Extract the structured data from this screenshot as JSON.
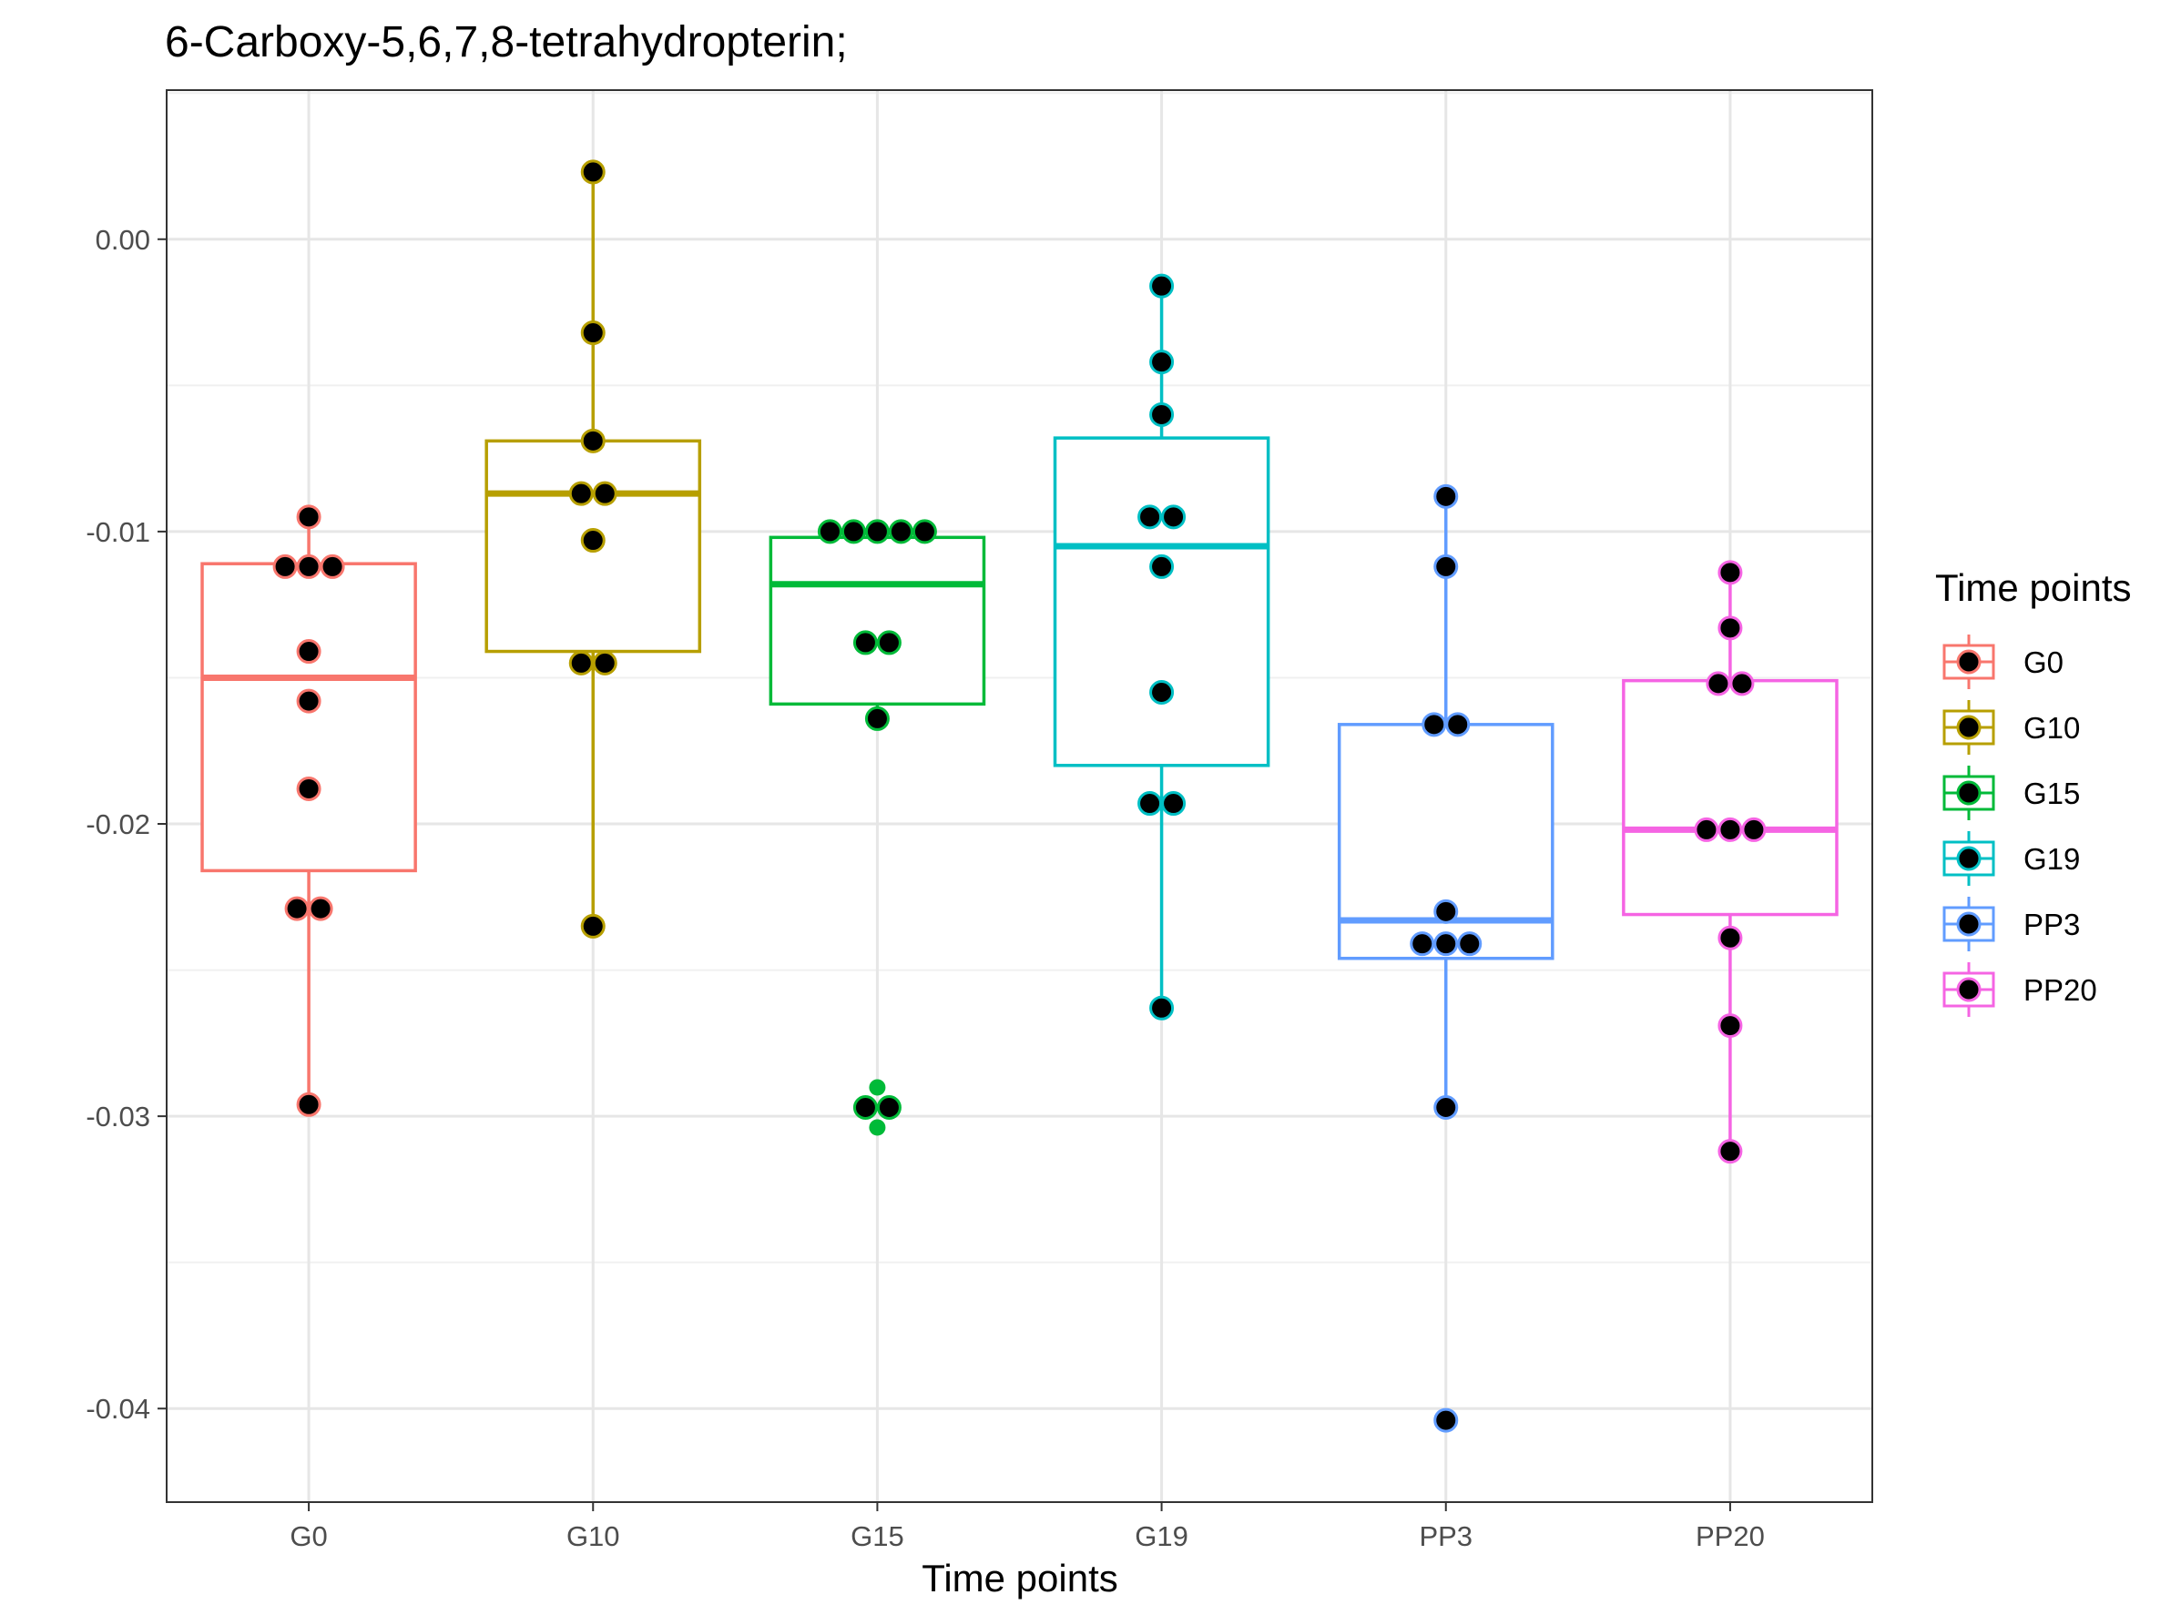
{
  "chart_data": {
    "type": "boxplot",
    "title": "6-Carboxy-5,6,7,8-tetrahydropterin;",
    "xlabel": "Time points",
    "ylabel": "",
    "categories": [
      "G0",
      "G10",
      "G15",
      "G19",
      "PP3",
      "PP20"
    ],
    "ylim": [
      -0.0432,
      0.0051
    ],
    "y_ticks": [
      0.0,
      -0.01,
      -0.02,
      -0.03,
      -0.04
    ],
    "y_tick_labels": [
      "0.00",
      "-0.01",
      "-0.02",
      "-0.03",
      "-0.04"
    ],
    "grid": true,
    "legend": {
      "title": "Time points",
      "position": "right",
      "entries": [
        "G0",
        "G10",
        "G15",
        "G19",
        "PP3",
        "PP20"
      ]
    },
    "colors": {
      "G0": "#F8766D",
      "G10": "#B79F00",
      "G15": "#00BA38",
      "G19": "#00BFC4",
      "PP3": "#619CFF",
      "PP20": "#F564E3"
    },
    "series": [
      {
        "name": "G0",
        "q1": -0.0216,
        "median": -0.015,
        "q3": -0.0111,
        "whisker_low": -0.0296,
        "whisker_high": -0.0095,
        "points": [
          -0.0095,
          -0.0112,
          -0.0112,
          -0.0112,
          -0.0141,
          -0.0158,
          -0.0188,
          -0.0229,
          -0.0229,
          -0.0296
        ]
      },
      {
        "name": "G10",
        "q1": -0.0141,
        "median": -0.0087,
        "q3": -0.0069,
        "whisker_low": -0.0235,
        "whisker_high": 0.0023,
        "points": [
          0.0023,
          -0.0032,
          -0.0069,
          -0.0087,
          -0.0087,
          -0.0103,
          -0.0145,
          -0.0145,
          -0.0235
        ]
      },
      {
        "name": "G15",
        "q1": -0.0159,
        "median": -0.0118,
        "q3": -0.0102,
        "whisker_low": -0.0164,
        "whisker_high": -0.01,
        "points": [
          -0.01,
          -0.01,
          -0.01,
          -0.01,
          -0.01,
          -0.0138,
          -0.0138,
          -0.0164,
          -0.0297,
          -0.0297
        ],
        "outliers": [
          -0.0297
        ]
      },
      {
        "name": "G19",
        "q1": -0.018,
        "median": -0.0105,
        "q3": -0.0068,
        "whisker_low": -0.0263,
        "whisker_high": -0.0016,
        "points": [
          -0.0016,
          -0.0042,
          -0.006,
          -0.0095,
          -0.0095,
          -0.0112,
          -0.0155,
          -0.0193,
          -0.0193,
          -0.0263
        ]
      },
      {
        "name": "PP3",
        "q1": -0.0246,
        "median": -0.0233,
        "q3": -0.0166,
        "whisker_low": -0.0297,
        "whisker_high": -0.0088,
        "points": [
          -0.0088,
          -0.0112,
          -0.0166,
          -0.0166,
          -0.023,
          -0.0241,
          -0.0241,
          -0.0241,
          -0.0297,
          -0.0404
        ]
      },
      {
        "name": "PP20",
        "q1": -0.0231,
        "median": -0.0202,
        "q3": -0.0151,
        "whisker_low": -0.0312,
        "whisker_high": -0.0114,
        "points": [
          -0.0114,
          -0.0133,
          -0.0152,
          -0.0152,
          -0.0202,
          -0.0202,
          -0.0202,
          -0.0239,
          -0.0269,
          -0.0312
        ]
      }
    ]
  }
}
